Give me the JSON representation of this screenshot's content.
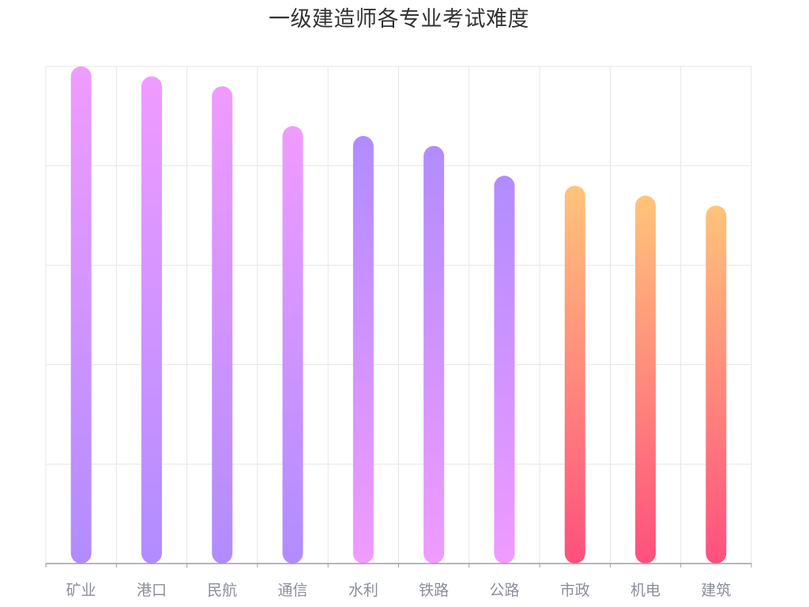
{
  "chart_data": {
    "type": "bar",
    "title": "一级建造师各专业考试难度",
    "xlabel": "",
    "ylabel": "",
    "categories": [
      "矿业",
      "港口",
      "民航",
      "通信",
      "水利",
      "铁路",
      "公路",
      "市政",
      "机电",
      "建筑"
    ],
    "values": [
      100,
      98,
      96,
      88,
      86,
      84,
      78,
      76,
      74,
      72
    ],
    "ylim": [
      0,
      100
    ],
    "y_tick_values": [
      0,
      20,
      40,
      60,
      80,
      100
    ],
    "y_tick_labels_visible": false,
    "grid": true,
    "legend": "none",
    "bar_gradients": [
      [
        "#f09bff",
        "#b18cff"
      ],
      [
        "#f09bff",
        "#b18cff"
      ],
      [
        "#f09bff",
        "#b18cff"
      ],
      [
        "#f09bff",
        "#b18cff"
      ],
      [
        "#b18cff",
        "#f09bff"
      ],
      [
        "#b18cff",
        "#f09bff"
      ],
      [
        "#b18cff",
        "#f09bff"
      ],
      [
        "#ffc47a",
        "#ff4f7e"
      ],
      [
        "#ffc47a",
        "#ff4f7e"
      ],
      [
        "#ffc47a",
        "#ff4f7e"
      ]
    ],
    "colors": {
      "grid": "#e6e6e6",
      "axis": "#9a9da6",
      "tick_label": "#8a8e99",
      "title": "#333333"
    }
  }
}
